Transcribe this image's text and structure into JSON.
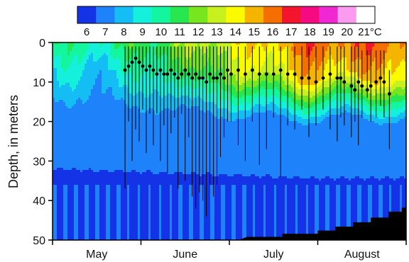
{
  "chart_data": {
    "type": "heatmap",
    "title": "",
    "xlabel": "",
    "ylabel": "Depth, in meters",
    "x_categories": [
      "May",
      "June",
      "July",
      "August"
    ],
    "y_ticks": [
      0,
      10,
      20,
      30,
      40,
      50
    ],
    "ylim": [
      50,
      0
    ],
    "colorbar": {
      "unit": "°C",
      "levels": [
        6,
        7,
        8,
        9,
        10,
        11,
        12,
        13,
        14,
        15,
        16,
        17,
        18,
        19,
        20,
        21
      ],
      "labels": [
        "6",
        "7",
        "8",
        "9",
        "10",
        "11",
        "12",
        "13",
        "14",
        "15",
        "16",
        "17",
        "18",
        "19",
        "20",
        "21°C"
      ],
      "colors": [
        "#1432e6",
        "#1e82fa",
        "#14bef5",
        "#14f0dc",
        "#14f5a0",
        "#28e650",
        "#78e61e",
        "#c8f01e",
        "#fafa00",
        "#f5b400",
        "#f56e00",
        "#f5142d",
        "#f50a82",
        "#f028d2",
        "#fa9bf0",
        "#ffffff"
      ]
    },
    "thermocline_depth_series": {
      "name": "",
      "x_day": [
        0.82,
        0.86,
        0.9,
        0.94,
        0.98,
        1.02,
        1.06,
        1.1,
        1.14,
        1.18,
        1.22,
        1.26,
        1.3,
        1.34,
        1.38,
        1.42,
        1.46,
        1.5,
        1.54,
        1.58,
        1.62,
        1.66,
        1.7,
        1.74,
        1.78,
        1.82,
        1.86,
        1.9,
        1.94,
        1.98,
        2.02,
        2.1,
        2.18,
        2.26,
        2.34,
        2.42,
        2.5,
        2.58,
        2.66,
        2.74,
        2.82,
        2.9,
        2.98,
        3.06,
        3.14,
        3.22,
        3.26,
        3.3,
        3.38,
        3.42,
        3.46,
        3.5,
        3.56,
        3.6,
        3.66,
        3.71,
        3.75,
        3.81
      ],
      "y_mean": [
        7,
        6,
        5,
        4,
        5,
        6,
        7,
        6,
        7,
        8,
        7,
        8,
        8,
        7,
        8,
        9,
        8,
        7,
        8,
        9,
        8,
        9,
        9,
        10,
        8,
        9,
        9,
        8,
        9,
        7,
        8,
        7,
        8,
        7,
        8,
        8,
        8,
        7,
        8,
        8,
        9,
        9,
        10,
        9,
        8,
        9,
        9,
        10,
        11,
        12,
        10,
        11,
        12,
        11,
        10,
        9,
        10,
        13
      ],
      "y_top": [
        1,
        1,
        1,
        1,
        1,
        1,
        1,
        1,
        1,
        1,
        1,
        1,
        1,
        1,
        1,
        1,
        1,
        1,
        1,
        1,
        1,
        1,
        1,
        1,
        1,
        1,
        1,
        1,
        1,
        1,
        1,
        1,
        1,
        1,
        1,
        1,
        1,
        1,
        1,
        1,
        1,
        1,
        1,
        1,
        1,
        1,
        1,
        1,
        1,
        1,
        1,
        2,
        2,
        2,
        2,
        2,
        2,
        7
      ],
      "y_bottom": [
        37,
        20,
        30,
        22,
        25,
        17,
        28,
        18,
        26,
        18,
        30,
        21,
        33,
        23,
        19,
        37,
        18,
        35,
        24,
        39,
        42,
        38,
        40,
        44,
        36,
        39,
        36,
        29,
        24,
        20,
        20,
        26,
        30,
        20,
        31,
        27,
        19,
        34,
        21,
        22,
        17,
        24,
        21,
        17,
        22,
        25,
        19,
        21,
        24,
        20,
        26,
        19,
        14,
        20,
        19,
        16,
        19,
        27
      ]
    },
    "bottom_mask_color": "#000000"
  }
}
